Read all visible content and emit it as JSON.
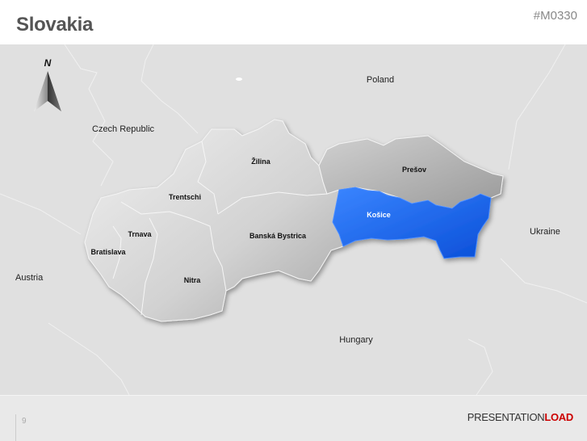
{
  "header": {
    "title": "Slovakia",
    "code": "#M0330"
  },
  "compass": {
    "label": "N",
    "icon": "north-arrow-icon"
  },
  "countries": {
    "poland": "Poland",
    "czech": "Czech Republic",
    "austria": "Austria",
    "hungary": "Hungary",
    "ukraine": "Ukraine"
  },
  "regions": {
    "zilina": "Žilina",
    "presov": "Prešov",
    "trentschi": "Trentschi",
    "kosice": "Košice",
    "trnava": "Trnava",
    "bratislava": "Bratislava",
    "banska": "Banská Bystrica",
    "nitra": "Nitra"
  },
  "highlight": {
    "region": "Košice",
    "color": "#1f66ee"
  },
  "footer": {
    "page": "9",
    "brand_a": "PRESENTATION",
    "brand_b": "LOAD",
    "brand_color": "#cc0000"
  }
}
